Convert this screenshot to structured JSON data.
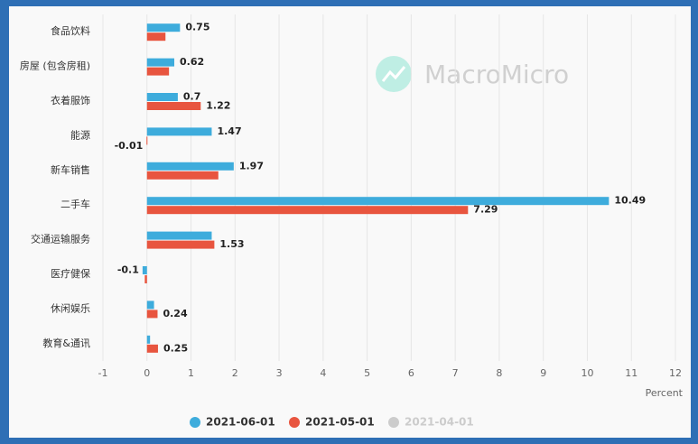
{
  "chart_data": {
    "type": "bar",
    "orientation": "horizontal",
    "watermark": "MacroMicro",
    "x_label": "Percent",
    "categories": [
      "食品饮料",
      "房屋 (包含房租)",
      "衣着服饰",
      "能源",
      "新车销售",
      "二手车",
      "交通运输服务",
      "医疗健保",
      "休闲娱乐",
      "教育&通讯"
    ],
    "series": [
      {
        "name": "2021-06-01",
        "color": "#3eacdc",
        "visible": true,
        "values": [
          0.75,
          0.62,
          0.7,
          1.47,
          1.97,
          10.49,
          1.47,
          -0.1,
          0.16,
          0.07
        ],
        "value_labels": [
          "0.75",
          "0.62",
          "0.7",
          "1.47",
          "1.97",
          "10.49",
          null,
          "-0.1",
          null,
          null
        ]
      },
      {
        "name": "2021-05-01",
        "color": "#e8553f",
        "visible": true,
        "values": [
          0.42,
          0.5,
          1.22,
          -0.01,
          1.62,
          7.29,
          1.53,
          -0.05,
          0.24,
          0.25
        ],
        "value_labels": [
          null,
          null,
          "1.22",
          "-0.01",
          null,
          "7.29",
          "1.53",
          null,
          "0.24",
          "0.25"
        ]
      },
      {
        "name": "2021-04-01",
        "color": "#cccccc",
        "visible": false,
        "values": [
          null,
          null,
          null,
          null,
          null,
          null,
          null,
          null,
          null,
          null
        ]
      }
    ],
    "xlim": [
      -1,
      12
    ],
    "xticks": [
      -1,
      0,
      1,
      2,
      3,
      4,
      5,
      6,
      7,
      8,
      9,
      10,
      11,
      12
    ],
    "grid": true,
    "legend": "bottom"
  }
}
